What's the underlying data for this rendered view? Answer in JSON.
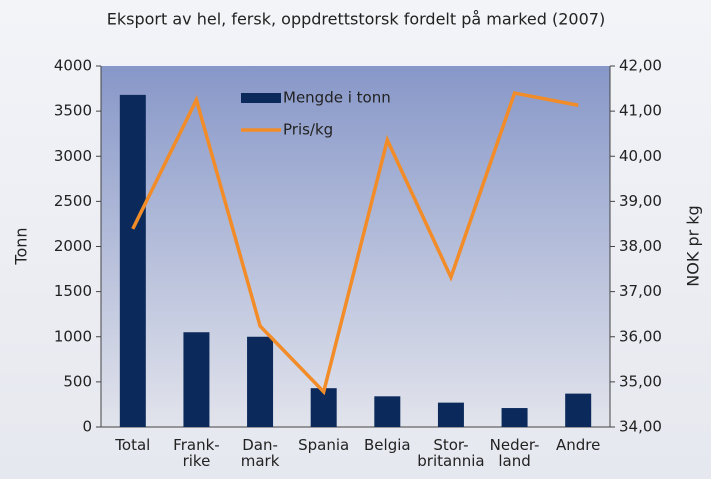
{
  "chart_data": {
    "type": "bar_line",
    "title": "Eksport av hel, fersk, oppdrettstorsk fordelt på marked (2007)",
    "y_label": "Tonn",
    "y2_label": "NOK pr kg",
    "categories": [
      "Total",
      "Frank-\nrike",
      "Dan-\nmark",
      "Spania",
      "Belgia",
      "Stor-\nbritannia",
      "Neder-\nland",
      "Andre"
    ],
    "series": [
      {
        "name": "Mengde i tonn",
        "color": "#0b2a5b",
        "type": "bar",
        "values": [
          3680,
          1050,
          1000,
          430,
          340,
          270,
          210,
          370
        ]
      },
      {
        "name": "Pris/kg",
        "color": "#f28c28",
        "type": "line",
        "axis": "y2",
        "values": [
          38.39,
          41.25,
          36.24,
          34.78,
          40.36,
          37.32,
          41.4,
          41.13
        ]
      }
    ],
    "ylim": [
      0,
      4000
    ],
    "yticks": [
      0,
      500,
      1000,
      1500,
      2000,
      2500,
      3000,
      3500,
      4000
    ],
    "y2lim": [
      34,
      42
    ],
    "y2ticks": [
      {
        "value": 34,
        "label": "34,00"
      },
      {
        "value": 35,
        "label": "35,00"
      },
      {
        "value": 36,
        "label": "36,00"
      },
      {
        "value": 37,
        "label": "37,00"
      },
      {
        "value": 38,
        "label": "38,00"
      },
      {
        "value": 39,
        "label": "39,00"
      },
      {
        "value": 40,
        "label": "40,00"
      },
      {
        "value": 41,
        "label": "41,00"
      },
      {
        "value": 42,
        "label": "42,00"
      }
    ]
  }
}
